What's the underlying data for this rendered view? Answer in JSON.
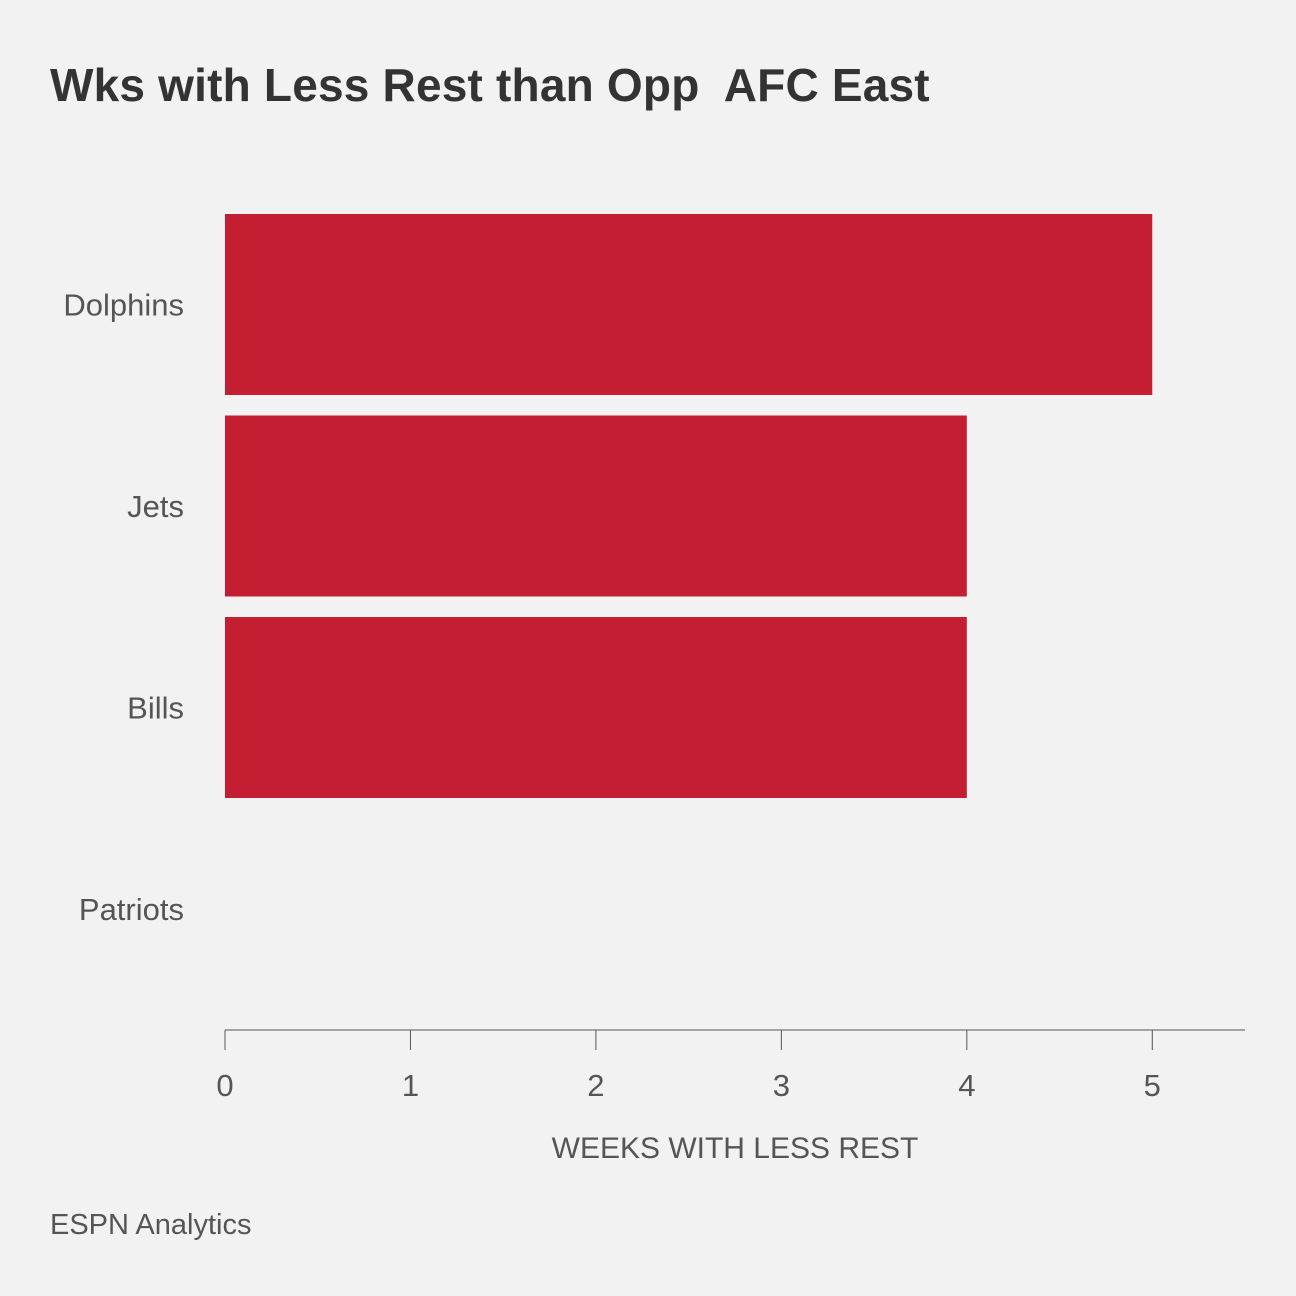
{
  "chart_data": {
    "type": "bar",
    "orientation": "horizontal",
    "title": "Wks with Less Rest than Opp  AFC East",
    "xlabel": "WEEKS WITH LESS REST",
    "ylabel": "",
    "categories": [
      "Dolphins",
      "Jets",
      "Bills",
      "Patriots"
    ],
    "values": [
      5,
      4,
      4,
      0
    ],
    "xlim": [
      0,
      5.5
    ],
    "xticks": [
      0,
      1,
      2,
      3,
      4,
      5
    ],
    "grid": false,
    "legend": "none",
    "bar_color": "#c41e32"
  },
  "footer": {
    "source": "ESPN Analytics"
  },
  "colors": {
    "background": "#f2f2f2",
    "text_dark": "#333333",
    "text_muted": "#555555",
    "axis": "#555555"
  }
}
